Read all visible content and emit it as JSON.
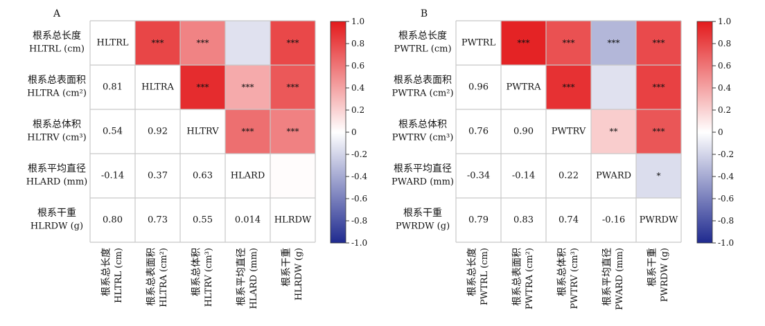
{
  "chart_data": [
    {
      "type": "heatmap",
      "panel_label": "A",
      "row_labels": [
        {
          "zh": "根系总长度",
          "en": "HLTRL (cm)"
        },
        {
          "zh": "根系总表面积",
          "en": "HLTRA (cm²)"
        },
        {
          "zh": "根系总体积",
          "en": "HLTRV (cm³)"
        },
        {
          "zh": "根系平均直径",
          "en": "HLARD (mm)"
        },
        {
          "zh": "根系干重",
          "en": "HLRDW (g)"
        }
      ],
      "col_labels": [
        {
          "zh": "根系总长度",
          "en": "HLTRL (cm)"
        },
        {
          "zh": "根系总表面积",
          "en": "HLTRA (cm²)"
        },
        {
          "zh": "根系总体积",
          "en": "HLTRV (cm³)"
        },
        {
          "zh": "根系平均直径",
          "en": "HLARD (mm)"
        },
        {
          "zh": "根系干重",
          "en": "HLRDW (g)"
        }
      ],
      "diagonal": [
        "HLTRL",
        "HLTRA",
        "HLTRV",
        "HLARD",
        "HLRDW"
      ],
      "lower_text": [
        [
          null,
          null,
          null,
          null,
          null
        ],
        [
          "0.81",
          null,
          null,
          null,
          null
        ],
        [
          "0.54",
          "0.92",
          null,
          null,
          null
        ],
        [
          "-0.14",
          "0.37",
          "0.63",
          null,
          null
        ],
        [
          "0.80",
          "0.73",
          "0.55",
          "0.014",
          null
        ]
      ],
      "upper_values": [
        [
          null,
          0.81,
          0.54,
          -0.14,
          0.8
        ],
        [
          null,
          null,
          0.92,
          0.37,
          0.73
        ],
        [
          null,
          null,
          null,
          0.63,
          0.55
        ],
        [
          null,
          null,
          null,
          null,
          0.014
        ],
        [
          null,
          null,
          null,
          null,
          null
        ]
      ],
      "upper_stars": [
        [
          null,
          "***",
          "***",
          "",
          "***"
        ],
        [
          null,
          null,
          "***",
          "***",
          "***"
        ],
        [
          null,
          null,
          null,
          "***",
          "***"
        ],
        [
          null,
          null,
          null,
          null,
          ""
        ],
        [
          null,
          null,
          null,
          null,
          null
        ]
      ],
      "colorbar": {
        "min": -1.0,
        "max": 1.0,
        "ticks": [
          "1.0",
          "0.8",
          "0.6",
          "0.4",
          "0.2",
          "0",
          "-0.2",
          "-0.4",
          "-0.6",
          "-0.8",
          "-1.0"
        ]
      }
    },
    {
      "type": "heatmap",
      "panel_label": "B",
      "row_labels": [
        {
          "zh": "根系总长度",
          "en": "PWTRL (cm)"
        },
        {
          "zh": "根系总表面积",
          "en": "PWTRA (cm²)"
        },
        {
          "zh": "根系总体积",
          "en": "PWTRV (cm³)"
        },
        {
          "zh": "根系平均直径",
          "en": "PWARD (mm)"
        },
        {
          "zh": "根系干重",
          "en": "PWRDW (g)"
        }
      ],
      "col_labels": [
        {
          "zh": "根系总长度",
          "en": "PWTRL (cm)"
        },
        {
          "zh": "根系总表面积",
          "en": "PWTRA (cm²)"
        },
        {
          "zh": "根系总体积",
          "en": "PWTRV (cm³)"
        },
        {
          "zh": "根系平均直径",
          "en": "PWARD (mm)"
        },
        {
          "zh": "根系干重",
          "en": "PWRDW (g)"
        }
      ],
      "diagonal": [
        "PWTRL",
        "PWTRA",
        "PWTRV",
        "PWARD",
        "PWRDW"
      ],
      "lower_text": [
        [
          null,
          null,
          null,
          null,
          null
        ],
        [
          "0.96",
          null,
          null,
          null,
          null
        ],
        [
          "0.76",
          "0.90",
          null,
          null,
          null
        ],
        [
          "-0.34",
          "-0.14",
          "0.22",
          null,
          null
        ],
        [
          "0.79",
          "0.83",
          "0.74",
          "-0.16",
          null
        ]
      ],
      "upper_values": [
        [
          null,
          0.96,
          0.76,
          -0.34,
          0.79
        ],
        [
          null,
          null,
          0.9,
          -0.14,
          0.83
        ],
        [
          null,
          null,
          null,
          0.22,
          0.74
        ],
        [
          null,
          null,
          null,
          null,
          -0.16
        ],
        [
          null,
          null,
          null,
          null,
          null
        ]
      ],
      "upper_stars": [
        [
          null,
          "***",
          "***",
          "***",
          "***"
        ],
        [
          null,
          null,
          "***",
          "",
          "***"
        ],
        [
          null,
          null,
          null,
          "**",
          "***"
        ],
        [
          null,
          null,
          null,
          null,
          "*"
        ],
        [
          null,
          null,
          null,
          null,
          null
        ]
      ],
      "colorbar": {
        "min": -1.0,
        "max": 1.0,
        "ticks": [
          "1.0",
          "0.8",
          "0.6",
          "0.4",
          "0.2",
          "0",
          "-0.2",
          "-0.4",
          "-0.6",
          "-0.8",
          "-1.0"
        ]
      }
    }
  ],
  "colors": {
    "negative": "#1f2a8f",
    "neutral": "#ffffff",
    "positive": "#e31a1c",
    "grid": "#c8c8c8",
    "text": "#111111"
  }
}
